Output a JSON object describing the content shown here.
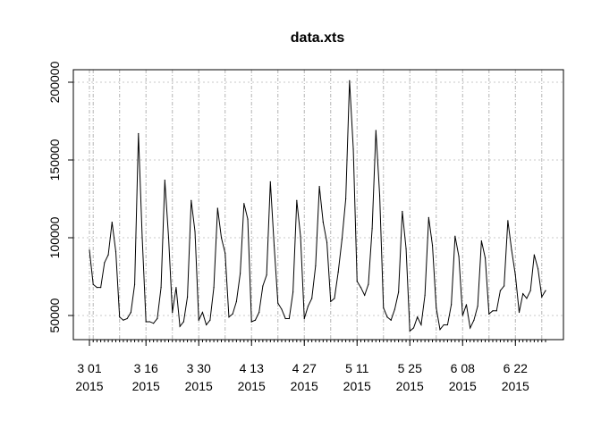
{
  "chart_data": {
    "type": "line",
    "title": "data.xts",
    "xlabel": "",
    "ylabel": "",
    "grid": true,
    "ylim": [
      35000,
      205000
    ],
    "yticks": [
      50000,
      100000,
      150000,
      200000
    ],
    "x_start": "2015-03-01",
    "x_end": "2015-06-30",
    "x_labels": [
      {
        "date": "2015-03-01",
        "line1": "3 01",
        "line2": "2015"
      },
      {
        "date": "2015-03-16",
        "line1": "3 16",
        "line2": "2015"
      },
      {
        "date": "2015-03-30",
        "line1": "3 30",
        "line2": "2015"
      },
      {
        "date": "2015-04-13",
        "line1": "4 13",
        "line2": "2015"
      },
      {
        "date": "2015-04-27",
        "line1": "4 27",
        "line2": "2015"
      },
      {
        "date": "2015-05-11",
        "line1": "5 11",
        "line2": "2015"
      },
      {
        "date": "2015-05-25",
        "line1": "5 25",
        "line2": "2015"
      },
      {
        "date": "2015-06-08",
        "line1": "6 08",
        "line2": "2015"
      },
      {
        "date": "2015-06-22",
        "line1": "6 22",
        "line2": "2015"
      }
    ],
    "series": [
      {
        "values": [
          92000,
          70000,
          68000,
          68000,
          84000,
          89000,
          110000,
          91000,
          49000,
          47000,
          48000,
          52000,
          70000,
          167000,
          100000,
          46000,
          46000,
          45000,
          48000,
          68000,
          137000,
          100000,
          52000,
          68000,
          43000,
          46000,
          62000,
          124000,
          104000,
          47000,
          52000,
          44000,
          47000,
          68000,
          119000,
          100000,
          90000,
          49000,
          51000,
          59000,
          77000,
          122000,
          112000,
          46000,
          47000,
          52000,
          69000,
          76000,
          136000,
          95000,
          58000,
          54000,
          48000,
          48000,
          65000,
          124000,
          101000,
          48000,
          56000,
          61000,
          82000,
          133000,
          110000,
          97000,
          59000,
          61000,
          78000,
          99000,
          125000,
          201000,
          157000,
          72000,
          68000,
          63000,
          70000,
          106000,
          169000,
          127000,
          55000,
          49000,
          47000,
          54000,
          65000,
          117000,
          93000,
          40000,
          42000,
          49000,
          44000,
          63000,
          113000,
          95000,
          55000,
          41000,
          44000,
          44000,
          57000,
          101000,
          88000,
          50000,
          57000,
          42000,
          47000,
          56000,
          98000,
          87000,
          51000,
          53000,
          53000,
          66000,
          69000,
          111000,
          92000,
          76000,
          52000,
          64000,
          61000,
          66000,
          89000,
          80000,
          62000,
          66000
        ]
      }
    ]
  }
}
